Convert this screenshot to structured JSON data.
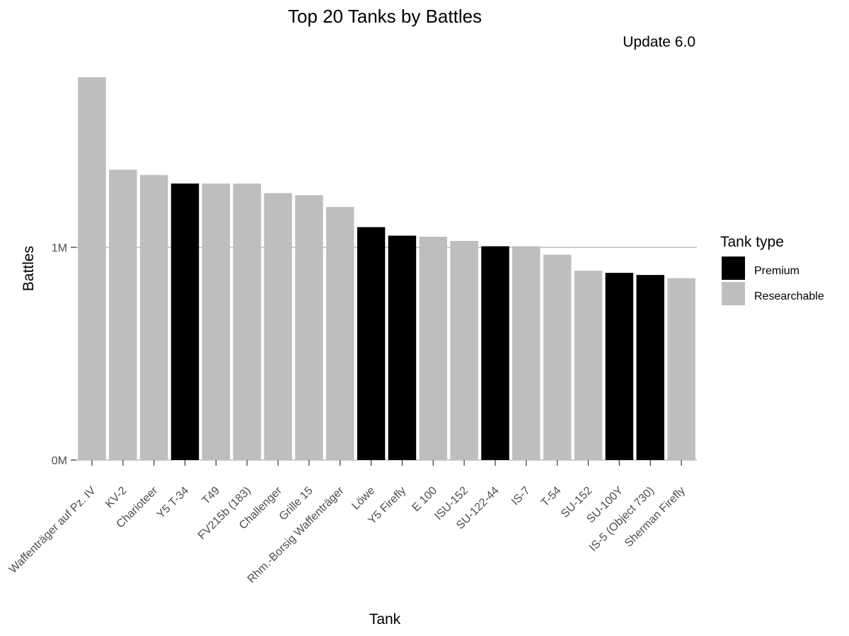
{
  "chart_data": {
    "type": "bar",
    "title": "Top 20 Tanks by Battles",
    "subtitle": "Update 6.0",
    "xlabel": "Tank",
    "ylabel": "Battles",
    "y_tick_values": [
      0,
      1000000
    ],
    "y_tick_labels": [
      "0M",
      "1M"
    ],
    "ylim": [
      0,
      1800000
    ],
    "grid": "major y only",
    "legend": {
      "title": "Tank type",
      "placement": "right",
      "entries": [
        {
          "name": "Premium",
          "color": "#000000"
        },
        {
          "name": "Researchable",
          "color": "#bebebe"
        }
      ]
    },
    "categories": [
      "Waffenträger auf Pz. IV",
      "KV-2",
      "Charioteer",
      "Y5 T-34",
      "T49",
      "FV215b (183)",
      "Challenger",
      "Grille 15",
      "Rhm.-Borsig Waffenträger",
      "Löwe",
      "Y5 Firefly",
      "E 100",
      "ISU-152",
      "SU-122-44",
      "IS-7",
      "T-54",
      "SU-152",
      "SU-100Y",
      "IS-5 (Object 730)",
      "Sherman Firefly"
    ],
    "values": [
      1800000,
      1365000,
      1340000,
      1300000,
      1300000,
      1300000,
      1255000,
      1245000,
      1190000,
      1095000,
      1055000,
      1050000,
      1030000,
      1005000,
      1005000,
      965000,
      890000,
      880000,
      870000,
      855000
    ],
    "types": [
      "Researchable",
      "Researchable",
      "Researchable",
      "Premium",
      "Researchable",
      "Researchable",
      "Researchable",
      "Researchable",
      "Researchable",
      "Premium",
      "Premium",
      "Researchable",
      "Researchable",
      "Premium",
      "Researchable",
      "Researchable",
      "Researchable",
      "Premium",
      "Premium",
      "Researchable"
    ]
  }
}
